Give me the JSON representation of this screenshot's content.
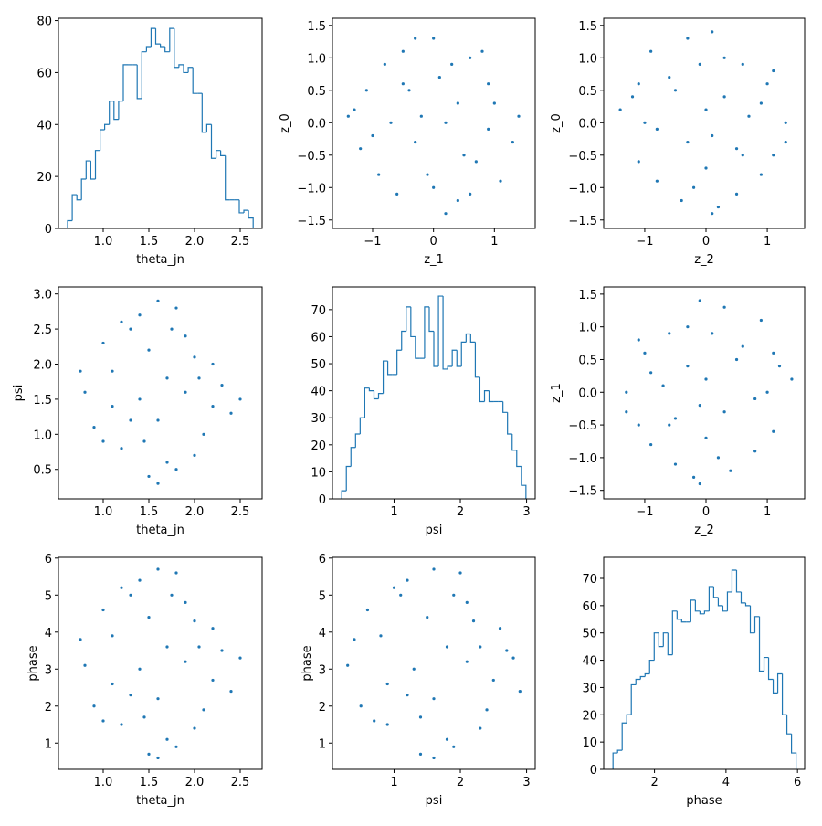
{
  "chart_data": [
    {
      "type": "histogram",
      "x_label": "theta_jn",
      "color": "#1f77b4",
      "bins": [
        0.61,
        0.661,
        0.712,
        0.762,
        0.813,
        0.864,
        0.915,
        0.966,
        1.016,
        1.067,
        1.118,
        1.169,
        1.22,
        1.27,
        1.321,
        1.372,
        1.423,
        1.474,
        1.524,
        1.575,
        1.626,
        1.677,
        1.728,
        1.778,
        1.829,
        1.88,
        1.931,
        1.982,
        2.032,
        2.083,
        2.134,
        2.185,
        2.236,
        2.286,
        2.337,
        2.388,
        2.439,
        2.49,
        2.54,
        2.591,
        2.642
      ],
      "values": [
        3,
        13,
        11,
        19,
        26,
        19,
        30,
        38,
        40,
        49,
        42,
        49,
        63,
        63,
        63,
        50,
        68,
        70,
        77,
        71,
        70,
        68,
        77,
        62,
        63,
        60,
        62,
        52,
        52,
        37,
        40,
        27,
        30,
        28,
        11,
        11,
        11,
        6,
        7,
        4
      ],
      "xlim": [
        0.51,
        2.74
      ],
      "ylim": [
        0,
        80.9
      ],
      "xticks": [
        {
          "value": 1,
          "label": "1.0"
        },
        1.5,
        {
          "value": 2,
          "label": "2.0"
        },
        2.5
      ],
      "yticks": [
        0,
        20,
        40,
        60,
        80
      ]
    },
    {
      "type": "scatter",
      "x_label": "z_1",
      "y_label": "z_0",
      "color": "#1f77b4",
      "x": [
        -1.3,
        -0.9,
        -0.5,
        0,
        0.4,
        0.9,
        1.3,
        -1.1,
        -0.6,
        -0.2,
        0.3,
        0.7,
        1.1,
        -1.2,
        -0.8,
        -0.3,
        0.2,
        0.6,
        1.0,
        1.4,
        -1.0,
        -0.4,
        0.1,
        0.5,
        0.9,
        -0.7,
        -0.1,
        0.4,
        0.8,
        -0.3,
        0.2,
        -1.4,
        0.0,
        0.6,
        -0.5
      ],
      "values": [
        0.2,
        -0.8,
        1.1,
        1.3,
        -1.2,
        0.6,
        -0.3,
        0.5,
        -1.1,
        0.1,
        0.9,
        -0.6,
        -0.9,
        -0.4,
        0.9,
        -0.3,
        -1.4,
        1.0,
        0.3,
        0.1,
        -0.2,
        0.5,
        0.7,
        -0.5,
        -0.1,
        0.0,
        -0.8,
        0.3,
        1.1,
        1.3,
        0.0,
        0.1,
        -1.0,
        -1.1,
        0.6
      ],
      "xlim": [
        -1.66,
        1.67
      ],
      "ylim": [
        -1.63,
        1.61
      ],
      "xticks": [
        {
          "value": -1,
          "label": "−1"
        },
        0,
        1
      ],
      "yticks": [
        {
          "value": -1.5,
          "label": "−1.5"
        },
        {
          "value": -1,
          "label": "−1.0"
        },
        {
          "value": -0.5,
          "label": "−0.5"
        },
        {
          "value": 0,
          "label": "0.0"
        },
        0.5,
        {
          "value": 1,
          "label": "1.0"
        },
        1.5
      ]
    },
    {
      "type": "scatter",
      "x_label": "z_2",
      "y_label": "z_0",
      "color": "#1f77b4",
      "x": [
        0.2,
        -0.8,
        1.1,
        1.3,
        -1.2,
        0.6,
        -0.3,
        0.5,
        -1.1,
        0.1,
        0.9,
        -0.6,
        -0.9,
        -0.4,
        0.9,
        -0.3,
        -1.4,
        1.0,
        0.3,
        0.1,
        -0.2,
        0.5,
        0.7,
        -0.5,
        -0.1,
        0.0,
        -0.8,
        0.3,
        1.1,
        1.3,
        0.0,
        0.1,
        -1.0,
        -1.1,
        0.6
      ],
      "values": [
        -1.3,
        -0.9,
        -0.5,
        0,
        0.4,
        0.9,
        1.3,
        -1.1,
        -0.6,
        -0.2,
        0.3,
        0.7,
        1.1,
        -1.2,
        -0.8,
        -0.3,
        0.2,
        0.6,
        1.0,
        1.4,
        -1.0,
        -0.4,
        0.1,
        0.5,
        0.9,
        -0.7,
        -0.1,
        0.4,
        0.8,
        -0.3,
        0.2,
        -1.4,
        0.0,
        0.6,
        -0.5
      ],
      "xlim": [
        -1.67,
        1.61
      ],
      "ylim": [
        -1.63,
        1.61
      ],
      "xticks": [
        {
          "value": -1,
          "label": "−1"
        },
        0,
        1
      ],
      "yticks": [
        {
          "value": -1.5,
          "label": "−1.5"
        },
        {
          "value": -1,
          "label": "−1.0"
        },
        {
          "value": -0.5,
          "label": "−0.5"
        },
        {
          "value": 0,
          "label": "0.0"
        },
        0.5,
        {
          "value": 1,
          "label": "1.0"
        },
        1.5
      ]
    },
    {
      "type": "scatter",
      "x_label": "theta_jn",
      "y_label": "psi",
      "color": "#1f77b4",
      "x": [
        0.8,
        1.0,
        1.2,
        1.4,
        1.6,
        1.8,
        2.0,
        2.2,
        2.4,
        0.9,
        1.1,
        1.3,
        1.5,
        1.7,
        1.9,
        2.1,
        2.3,
        1.0,
        1.2,
        1.4,
        1.6,
        1.8,
        2.0,
        2.2,
        1.3,
        1.5,
        1.7,
        1.9,
        1.6,
        1.1,
        2.5,
        0.75,
        1.45,
        1.75,
        2.05
      ],
      "values": [
        1.6,
        2.3,
        0.8,
        2.7,
        1.2,
        2.8,
        0.7,
        2.0,
        1.3,
        1.1,
        1.9,
        2.5,
        0.4,
        1.8,
        2.4,
        1.0,
        1.7,
        0.9,
        2.6,
        1.5,
        2.9,
        0.5,
        2.1,
        1.4,
        1.2,
        2.2,
        0.6,
        1.6,
        0.3,
        1.4,
        1.5,
        1.9,
        0.9,
        2.5,
        1.8
      ],
      "xlim": [
        0.51,
        2.74
      ],
      "ylim": [
        0.08,
        3.1
      ],
      "xticks": [
        {
          "value": 1,
          "label": "1.0"
        },
        1.5,
        {
          "value": 2,
          "label": "2.0"
        },
        2.5
      ],
      "yticks": [
        0.5,
        {
          "value": 1,
          "label": "1.0"
        },
        1.5,
        {
          "value": 2,
          "label": "2.0"
        },
        2.5,
        {
          "value": 3,
          "label": "3.0"
        }
      ]
    },
    {
      "type": "histogram",
      "x_label": "psi",
      "color": "#1f77b4",
      "bins": [
        0.21,
        0.28,
        0.349,
        0.419,
        0.488,
        0.558,
        0.627,
        0.697,
        0.766,
        0.836,
        0.905,
        0.975,
        1.044,
        1.114,
        1.183,
        1.253,
        1.322,
        1.392,
        1.461,
        1.531,
        1.6,
        1.67,
        1.739,
        1.809,
        1.878,
        1.948,
        2.017,
        2.087,
        2.156,
        2.226,
        2.295,
        2.365,
        2.434,
        2.504,
        2.573,
        2.643,
        2.712,
        2.782,
        2.851,
        2.921,
        2.99
      ],
      "values": [
        3,
        12,
        19,
        24,
        30,
        41,
        40,
        37,
        39,
        51,
        46,
        46,
        55,
        62,
        71,
        60,
        52,
        52,
        71,
        62,
        49,
        75,
        48,
        49,
        55,
        49,
        58,
        61,
        58,
        45,
        36,
        40,
        36,
        36,
        36,
        32,
        24,
        18,
        12,
        5
      ],
      "xlim": [
        0.07,
        3.13
      ],
      "ylim": [
        0,
        78.4
      ],
      "xticks": [
        1,
        2,
        3
      ],
      "yticks": [
        0,
        10,
        20,
        30,
        40,
        50,
        60,
        70
      ]
    },
    {
      "type": "scatter",
      "x_label": "z_2",
      "y_label": "z_1",
      "color": "#1f77b4",
      "x": [
        -0.2,
        0.8,
        -1.1,
        -1.3,
        1.2,
        -0.6,
        0.3,
        -0.5,
        1.1,
        -0.1,
        -0.9,
        0.6,
        0.9,
        0.4,
        -0.9,
        0.3,
        1.4,
        -1.0,
        -0.3,
        -0.1,
        0.2,
        -0.5,
        -0.7,
        0.5,
        0.1,
        0,
        0.8,
        -0.3,
        -1.1,
        -1.3,
        0,
        -0.1,
        1.0,
        1.1,
        -0.6
      ],
      "values": [
        -1.3,
        -0.9,
        -0.5,
        0,
        0.4,
        0.9,
        1.3,
        -1.1,
        -0.6,
        -0.2,
        0.3,
        0.7,
        1.1,
        -1.2,
        -0.8,
        -0.3,
        0.2,
        0.6,
        1.0,
        1.4,
        -1.0,
        -0.4,
        0.1,
        0.5,
        0.9,
        -0.7,
        -0.1,
        0.4,
        0.8,
        -0.3,
        0.2,
        -1.4,
        0.0,
        0.6,
        -0.5
      ],
      "xlim": [
        -1.67,
        1.61
      ],
      "ylim": [
        -1.63,
        1.61
      ],
      "xticks": [
        {
          "value": -1,
          "label": "−1"
        },
        0,
        1
      ],
      "yticks": [
        {
          "value": -1.5,
          "label": "−1.5"
        },
        {
          "value": -1,
          "label": "−1.0"
        },
        {
          "value": -0.5,
          "label": "−0.5"
        },
        {
          "value": 0,
          "label": "0.0"
        },
        0.5,
        {
          "value": 1,
          "label": "1.0"
        },
        1.5
      ]
    },
    {
      "type": "scatter",
      "x_label": "theta_jn",
      "y_label": "phase",
      "color": "#1f77b4",
      "x": [
        0.8,
        1.0,
        1.2,
        1.4,
        1.6,
        1.8,
        2.0,
        2.2,
        2.4,
        0.9,
        1.1,
        1.3,
        1.5,
        1.7,
        1.9,
        2.1,
        2.3,
        1.0,
        1.2,
        1.4,
        1.6,
        1.8,
        2.0,
        2.2,
        1.3,
        1.5,
        1.7,
        1.9,
        1.6,
        1.1,
        2.5,
        0.75,
        1.45,
        1.75,
        2.05
      ],
      "values": [
        3.1,
        4.6,
        1.5,
        5.4,
        2.2,
        5.6,
        1.4,
        4.1,
        2.4,
        2.0,
        3.9,
        5.0,
        0.7,
        3.6,
        4.8,
        1.9,
        3.5,
        1.6,
        5.2,
        3.0,
        5.7,
        0.9,
        4.3,
        2.7,
        2.3,
        4.4,
        1.1,
        3.2,
        0.6,
        2.6,
        3.3,
        3.8,
        1.7,
        5.0,
        3.6
      ],
      "xlim": [
        0.51,
        2.74
      ],
      "ylim": [
        0.29,
        6.02
      ],
      "xticks": [
        {
          "value": 1,
          "label": "1.0"
        },
        1.5,
        {
          "value": 2,
          "label": "2.0"
        },
        2.5
      ],
      "yticks": [
        1,
        2,
        3,
        4,
        5,
        6
      ]
    },
    {
      "type": "scatter",
      "x_label": "psi",
      "y_label": "phase",
      "color": "#1f77b4",
      "x": [
        0.3,
        0.6,
        0.9,
        1.2,
        1.6,
        2.0,
        2.3,
        2.6,
        2.9,
        0.5,
        0.8,
        1.1,
        1.4,
        1.8,
        2.1,
        2.4,
        2.7,
        0.7,
        1.0,
        1.3,
        1.6,
        1.9,
        2.2,
        2.5,
        1.2,
        1.5,
        1.8,
        2.1,
        1.6,
        0.9,
        2.8,
        0.4,
        1.4,
        1.9,
        2.3
      ],
      "values": [
        3.1,
        4.6,
        1.5,
        5.4,
        2.2,
        5.6,
        1.4,
        4.1,
        2.4,
        2.0,
        3.9,
        5.0,
        0.7,
        3.6,
        4.8,
        1.9,
        3.5,
        1.6,
        5.2,
        3.0,
        5.7,
        0.9,
        4.3,
        2.7,
        2.3,
        4.4,
        1.1,
        3.2,
        0.6,
        2.6,
        3.3,
        3.8,
        1.7,
        5.0,
        3.6
      ],
      "xlim": [
        0.07,
        3.13
      ],
      "ylim": [
        0.29,
        6.02
      ],
      "xticks": [
        1,
        2,
        3
      ],
      "yticks": [
        1,
        2,
        3,
        4,
        5,
        6
      ]
    },
    {
      "type": "histogram",
      "x_label": "phase",
      "color": "#1f77b4",
      "bins": [
        0.84,
        0.968,
        1.096,
        1.224,
        1.352,
        1.48,
        1.608,
        1.736,
        1.864,
        1.992,
        2.12,
        2.248,
        2.376,
        2.504,
        2.632,
        2.76,
        2.888,
        3.016,
        3.144,
        3.272,
        3.4,
        3.528,
        3.656,
        3.784,
        3.912,
        4.04,
        4.168,
        4.296,
        4.424,
        4.552,
        4.68,
        4.808,
        4.936,
        5.064,
        5.192,
        5.32,
        5.448,
        5.576,
        5.704,
        5.832,
        5.96
      ],
      "values": [
        6,
        7,
        17,
        20,
        31,
        33,
        34,
        35,
        40,
        50,
        45,
        50,
        42,
        58,
        55,
        54,
        54,
        62,
        58,
        57,
        58,
        67,
        63,
        60,
        58,
        65,
        73,
        65,
        61,
        60,
        50,
        56,
        36,
        41,
        33,
        28,
        35,
        20,
        13,
        6
      ],
      "xlim": [
        0.58,
        6.2
      ],
      "ylim": [
        0,
        77.7
      ],
      "xticks": [
        2,
        4,
        6
      ],
      "yticks": [
        0,
        10,
        20,
        30,
        40,
        50,
        60,
        70
      ]
    }
  ]
}
